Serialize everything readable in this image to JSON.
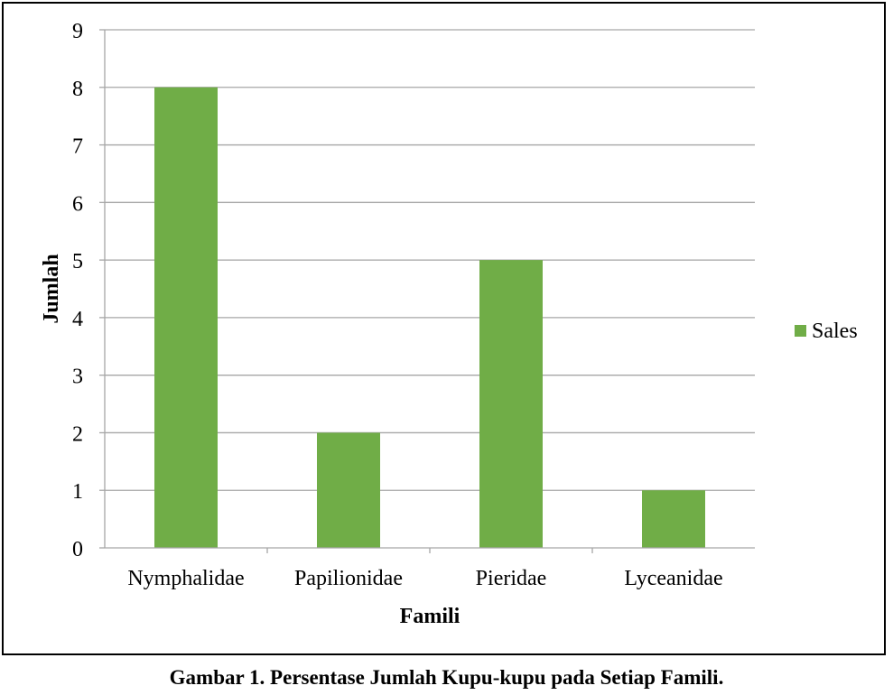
{
  "caption": "Gambar 1. Persentase Jumlah Kupu-kupu pada Setiap Famili.",
  "chart_data": {
    "type": "bar",
    "categories": [
      "Nymphalidae",
      "Papilionidae",
      "Pieridae",
      "Lyceanidae"
    ],
    "series": [
      {
        "name": "Sales",
        "values": [
          8,
          2,
          5,
          1
        ],
        "color": "#70AD47"
      }
    ],
    "title": "",
    "xlabel": "Famili",
    "ylabel": "Jumlah",
    "ylim": [
      0,
      9
    ],
    "yticks": [
      0,
      1,
      2,
      3,
      4,
      5,
      6,
      7,
      8,
      9
    ],
    "grid": true,
    "legend_position": "right",
    "gridline_color": "#A6A6A6"
  }
}
